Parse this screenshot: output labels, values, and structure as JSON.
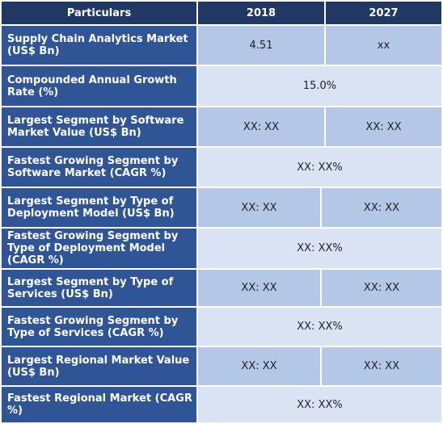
{
  "header": {
    "particulars": "Particulars",
    "col1": "2018",
    "col2": "2027"
  },
  "rows": [
    {
      "label": "Supply Chain Analytics Market (US$ Bn)",
      "v1": "4.51",
      "v2": "xx"
    },
    {
      "label": "Compounded Annual Growth Rate (%)",
      "v": "15.0%"
    },
    {
      "label": "Largest Segment by Software Market Value (US$ Bn)",
      "v1": "XX: XX",
      "v2": "XX: XX"
    },
    {
      "label": "Fastest Growing Segment by Software Market (CAGR %)",
      "v": "XX: XX%"
    },
    {
      "label": "Largest Segment by Type of Deployment Model (US$ Bn)",
      "v1": "XX: XX",
      "v2": "XX: XX"
    },
    {
      "label": "Fastest Growing Segment by Type of Deployment Model (CAGR %)",
      "v": "XX: XX%"
    },
    {
      "label": "Largest Segment by Type of Services (US$ Bn)",
      "v1": "XX: XX",
      "v2": "XX: XX"
    },
    {
      "label": "Fastest Growing Segment by Type of Services (CAGR %)",
      "v": "XX: XX%"
    },
    {
      "label": "Largest Regional Market Value (US$ Bn)",
      "v1": "XX: XX",
      "v2": "XX: XX"
    },
    {
      "label": "Fastest Regional Market (CAGR %)",
      "v": "XX: XX%"
    }
  ]
}
